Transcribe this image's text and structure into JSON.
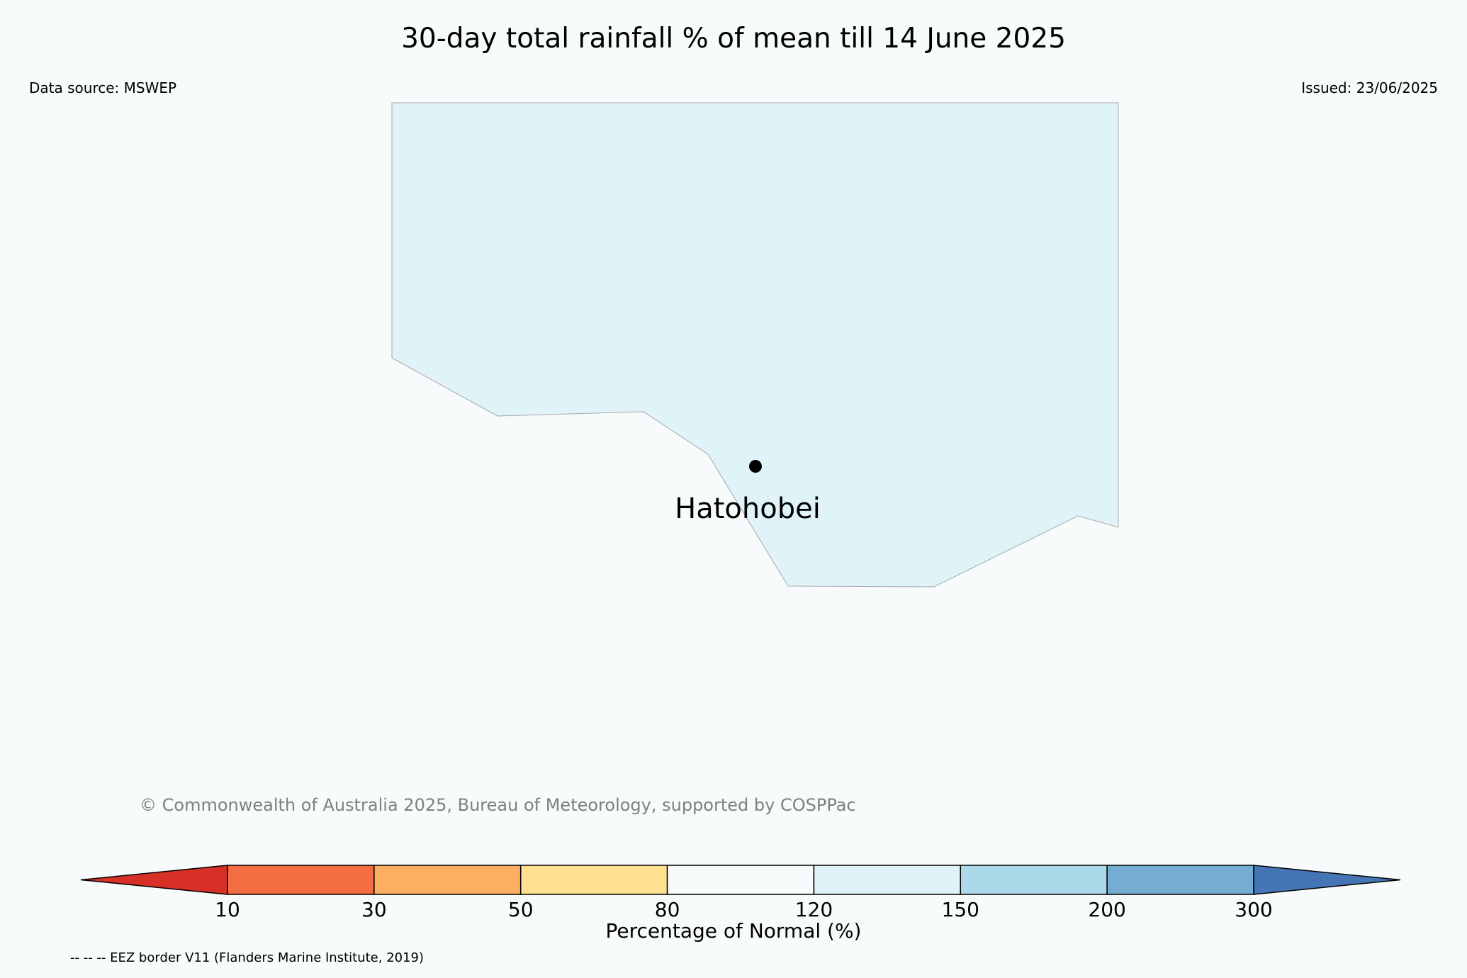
{
  "header": {
    "title": "30-day total rainfall % of mean till 14 June 2025",
    "data_source": "Data source: MSWEP",
    "issued": "Issued: 23/06/2025"
  },
  "map": {
    "place_label": "Hatohobei",
    "land_color": "#f7fbfc",
    "region_fill_color": "#e0f3f8",
    "region_category": "120–150",
    "location_marker_color": "#000000"
  },
  "copyright": "© Commonwealth of Australia 2025, Bureau of Meteorology, supported by COSPPac",
  "colorbar": {
    "label": "Percentage of Normal (%)",
    "ticks": [
      "10",
      "30",
      "50",
      "80",
      "120",
      "150",
      "200",
      "300"
    ],
    "extend_low_color": "#d73027",
    "bins": [
      {
        "range": "10-30",
        "color": "#f46d43"
      },
      {
        "range": "30-50",
        "color": "#fdae61"
      },
      {
        "range": "50-80",
        "color": "#fee090"
      },
      {
        "range": "80-120",
        "color": "#f7fbfc"
      },
      {
        "range": "120-150",
        "color": "#e0f3f8"
      },
      {
        "range": "150-200",
        "color": "#abd9e9"
      },
      {
        "range": "200-300",
        "color": "#74add1"
      }
    ],
    "extend_high_color": "#4575b4"
  },
  "footnote": "-- -- -- EEZ border V11 (Flanders Marine Institute, 2019)"
}
